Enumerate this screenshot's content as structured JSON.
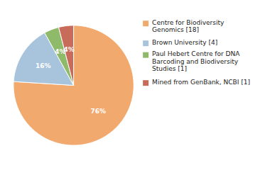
{
  "chart_data": {
    "type": "pie",
    "categories": [
      "Centre for Biodiversity\nGenomics [18]",
      "Brown University [4]",
      "Paul Hebert Centre for DNA\nBarcoding and Biodiversity\nStudies [1]",
      "Mined from GenBank, NCBI [1]"
    ],
    "values": [
      76,
      16,
      4,
      4
    ],
    "value_labels": [
      "76%",
      "16%",
      "4%",
      "4%"
    ],
    "colors": [
      "#F2A96E",
      "#A8C4DC",
      "#8FBA6A",
      "#C96B5A"
    ],
    "data_labels": true,
    "legend": "right"
  }
}
